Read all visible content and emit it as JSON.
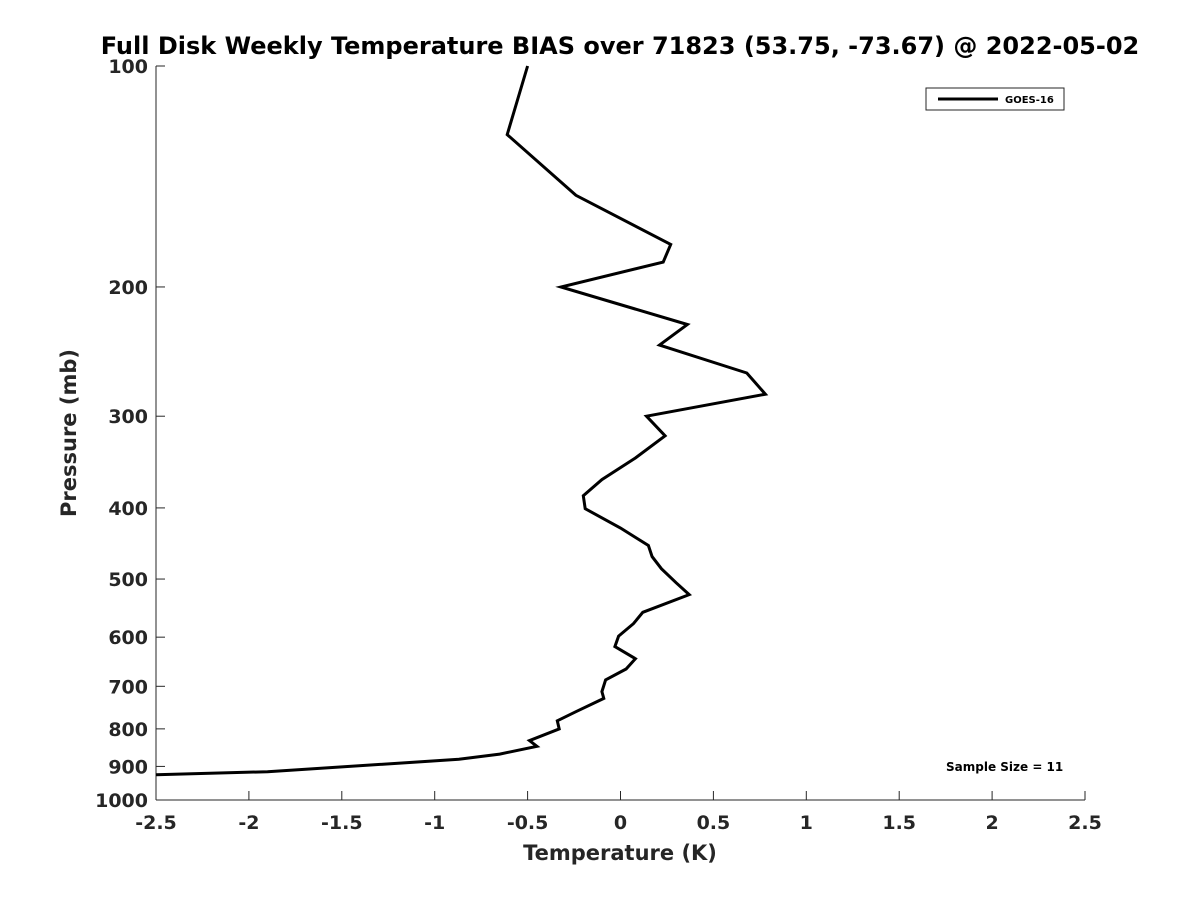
{
  "chart_data": {
    "type": "line",
    "title": "Full Disk Weekly Temperature BIAS over 71823 (53.75, -73.67) @ 2022-05-02",
    "xlabel": "Temperature (K)",
    "ylabel": "Pressure (mb)",
    "xlim": [
      -2.5,
      2.5
    ],
    "ylim": [
      100,
      1000
    ],
    "y_scale": "log",
    "y_reversed": true,
    "grid": false,
    "legend_position": "top-right",
    "x_ticks": [
      "-2.5",
      "-2",
      "-1.5",
      "-1",
      "-0.5",
      "0",
      "0.5",
      "1",
      "1.5",
      "2",
      "2.5"
    ],
    "y_ticks": [
      "100",
      "200",
      "300",
      "400",
      "500",
      "600",
      "700",
      "800",
      "900",
      "1000"
    ],
    "series": [
      {
        "name": "GOES-16",
        "color": "#000000",
        "points": [
          {
            "x": -0.5,
            "p": 100
          },
          {
            "x": -0.61,
            "p": 124
          },
          {
            "x": -0.24,
            "p": 150
          },
          {
            "x": 0.27,
            "p": 175
          },
          {
            "x": 0.23,
            "p": 185
          },
          {
            "x": -0.32,
            "p": 200
          },
          {
            "x": 0.36,
            "p": 225
          },
          {
            "x": 0.21,
            "p": 240
          },
          {
            "x": 0.68,
            "p": 262
          },
          {
            "x": 0.78,
            "p": 280
          },
          {
            "x": 0.14,
            "p": 300
          },
          {
            "x": 0.24,
            "p": 319
          },
          {
            "x": 0.08,
            "p": 342
          },
          {
            "x": -0.1,
            "p": 366
          },
          {
            "x": -0.2,
            "p": 385
          },
          {
            "x": -0.19,
            "p": 401
          },
          {
            "x": 0.0,
            "p": 426
          },
          {
            "x": 0.15,
            "p": 450
          },
          {
            "x": 0.17,
            "p": 466
          },
          {
            "x": 0.22,
            "p": 484
          },
          {
            "x": 0.3,
            "p": 506
          },
          {
            "x": 0.37,
            "p": 525
          },
          {
            "x": 0.12,
            "p": 555
          },
          {
            "x": 0.07,
            "p": 575
          },
          {
            "x": -0.01,
            "p": 598
          },
          {
            "x": -0.03,
            "p": 618
          },
          {
            "x": 0.08,
            "p": 642
          },
          {
            "x": 0.03,
            "p": 663
          },
          {
            "x": -0.08,
            "p": 686
          },
          {
            "x": -0.1,
            "p": 712
          },
          {
            "x": -0.09,
            "p": 727
          },
          {
            "x": -0.24,
            "p": 758
          },
          {
            "x": -0.34,
            "p": 780
          },
          {
            "x": -0.33,
            "p": 800
          },
          {
            "x": -0.49,
            "p": 830
          },
          {
            "x": -0.45,
            "p": 845
          },
          {
            "x": -0.65,
            "p": 866
          },
          {
            "x": -0.87,
            "p": 880
          },
          {
            "x": -1.9,
            "p": 915
          },
          {
            "x": -2.5,
            "p": 924
          }
        ]
      }
    ],
    "annotation": "Sample Size = 11"
  }
}
